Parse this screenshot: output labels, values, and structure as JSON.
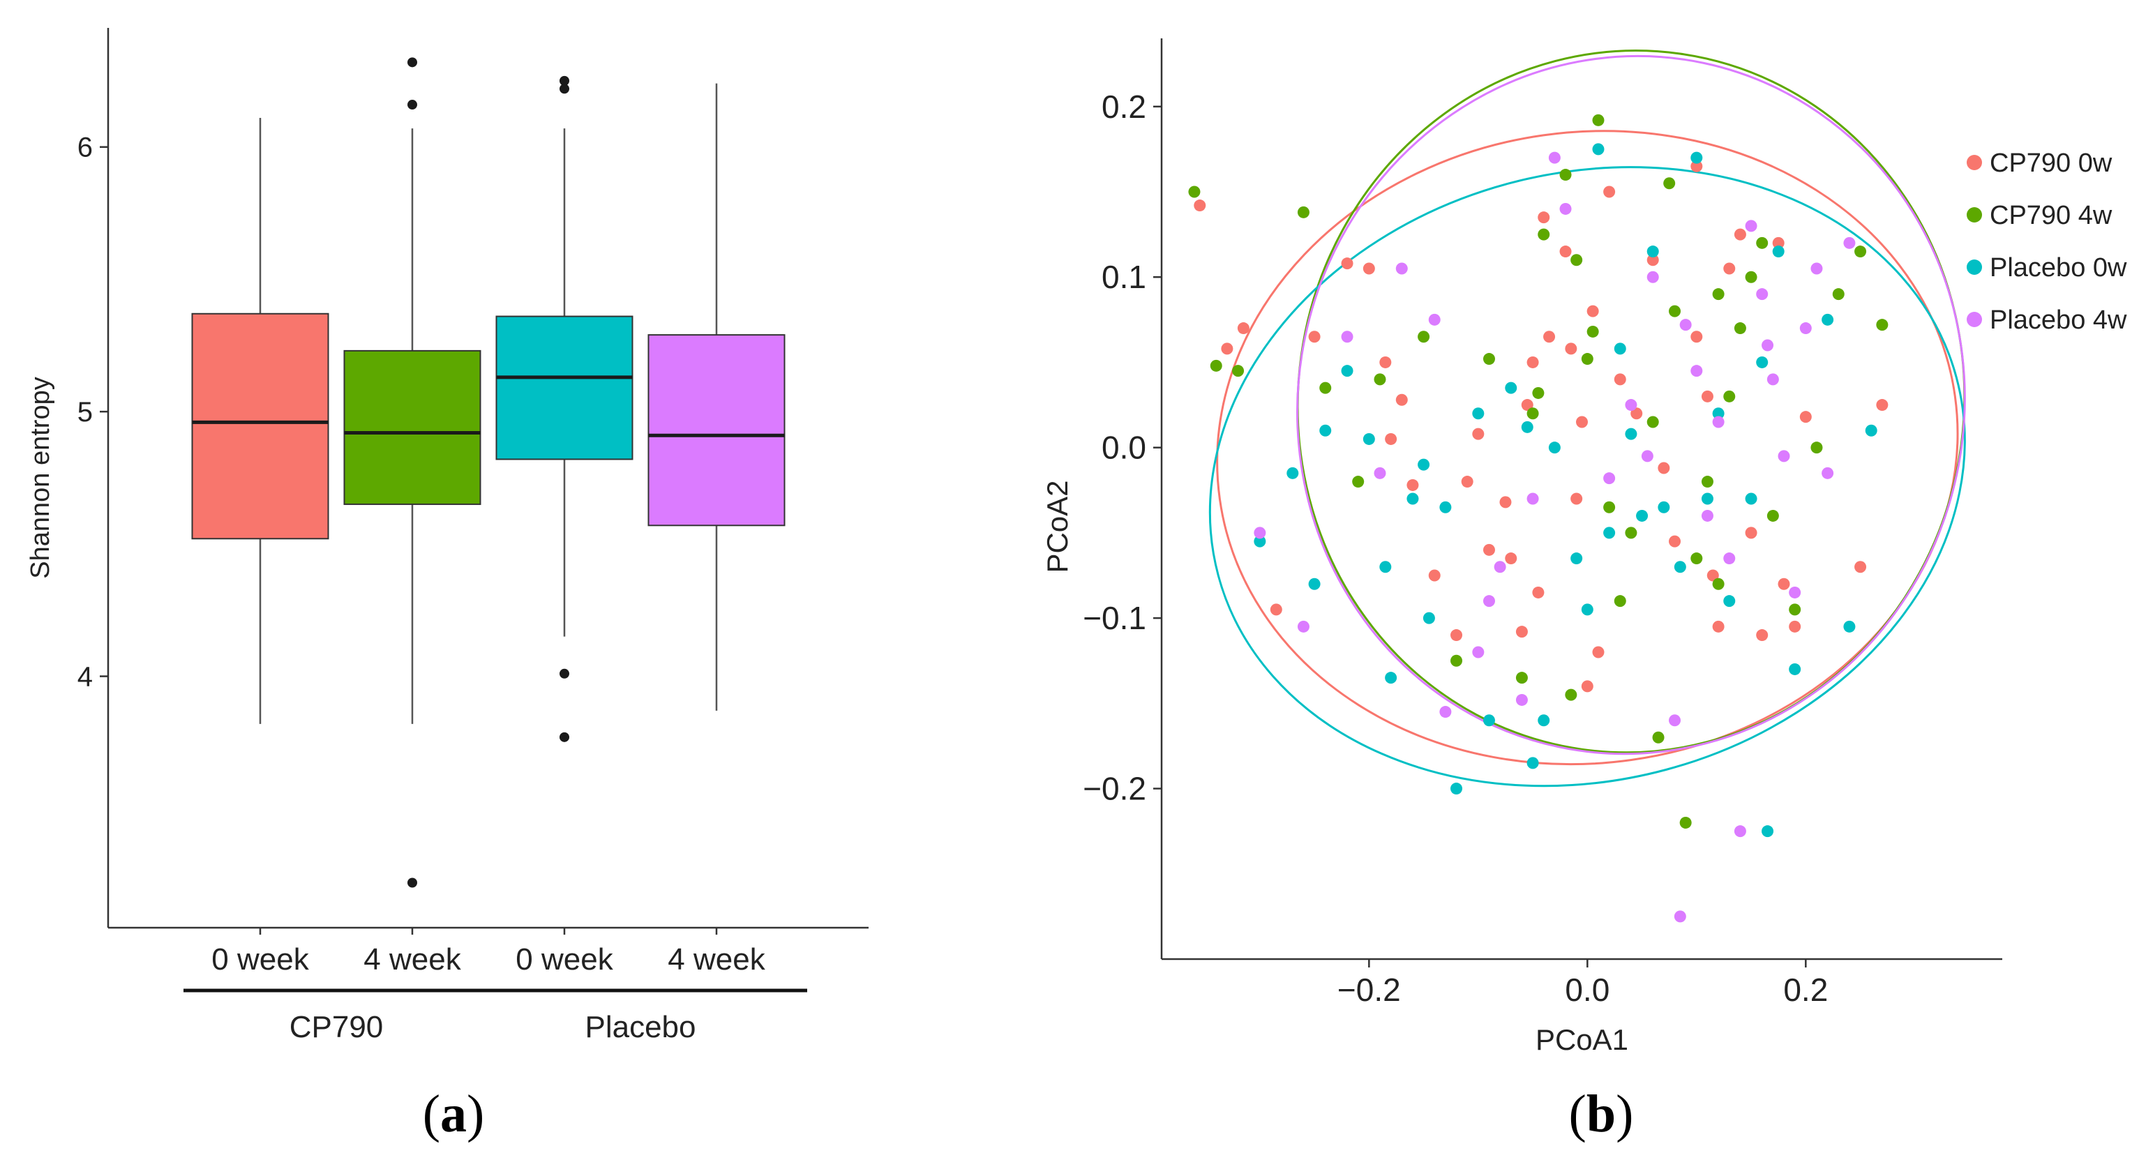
{
  "panels": {
    "a": {
      "label_open": "(",
      "label_letter": "a",
      "label_close": ")"
    },
    "b": {
      "label_open": "(",
      "label_letter": "b",
      "label_close": ")"
    }
  },
  "chart_data": [
    {
      "type": "box",
      "panel": "a",
      "title": "",
      "xlabel": "",
      "ylabel": "Shannon entropy",
      "ylim": [
        3.05,
        6.45
      ],
      "yticks": [
        4,
        5,
        6
      ],
      "grid": false,
      "groups": [
        {
          "label": "CP790",
          "categories": [
            0,
            1
          ]
        },
        {
          "label": "Placebo",
          "categories": [
            2,
            3
          ]
        }
      ],
      "boxes": [
        {
          "category": "0 week",
          "group": "CP790",
          "color": "#F8766D",
          "whisker_low": 3.82,
          "q1": 4.52,
          "median": 4.96,
          "q3": 5.37,
          "whisker_high": 6.11,
          "outliers": []
        },
        {
          "category": "4 week",
          "group": "CP790",
          "color": "#5DA800",
          "whisker_low": 3.82,
          "q1": 4.65,
          "median": 4.92,
          "q3": 5.23,
          "whisker_high": 6.07,
          "outliers": [
            6.32,
            6.16,
            3.22
          ]
        },
        {
          "category": "0 week",
          "group": "Placebo",
          "color": "#00BFC4",
          "whisker_low": 4.15,
          "q1": 4.82,
          "median": 5.13,
          "q3": 5.36,
          "whisker_high": 6.07,
          "outliers": [
            6.25,
            6.22,
            4.01,
            3.77
          ]
        },
        {
          "category": "4 week",
          "group": "Placebo",
          "color": "#DB7BFF",
          "whisker_low": 3.87,
          "q1": 4.57,
          "median": 4.91,
          "q3": 5.29,
          "whisker_high": 6.24,
          "outliers": []
        }
      ]
    },
    {
      "type": "scatter",
      "panel": "b",
      "title": "",
      "xlabel": "PCoA1",
      "ylabel": "PCoA2",
      "xlim": [
        -0.39,
        0.38
      ],
      "ylim": [
        -0.3,
        0.24
      ],
      "xticks": [
        -0.2,
        0.0,
        0.2
      ],
      "yticks": [
        -0.2,
        -0.1,
        0.0,
        0.1,
        0.2
      ],
      "xtick_labels": [
        "−0.2",
        "0.0",
        "0.2"
      ],
      "ytick_labels": [
        "−0.2",
        "−0.1",
        "0.0",
        "0.1",
        "0.2"
      ],
      "grid": false,
      "legend_position": "right",
      "series": [
        {
          "name": "CP790 0w",
          "color": "#F8766D",
          "ellipse": {
            "cx": 0.0,
            "cy": 0.0,
            "rx": 0.34,
            "ry": 0.185,
            "angle_deg": 8
          },
          "points": [
            [
              -0.355,
              0.142
            ],
            [
              -0.33,
              0.058
            ],
            [
              -0.315,
              0.07
            ],
            [
              -0.285,
              -0.095
            ],
            [
              -0.25,
              0.065
            ],
            [
              -0.22,
              0.108
            ],
            [
              -0.2,
              0.105
            ],
            [
              -0.185,
              0.05
            ],
            [
              -0.18,
              0.005
            ],
            [
              -0.17,
              0.028
            ],
            [
              -0.16,
              -0.022
            ],
            [
              -0.14,
              -0.075
            ],
            [
              -0.12,
              -0.11
            ],
            [
              -0.1,
              0.008
            ],
            [
              -0.09,
              -0.06
            ],
            [
              -0.075,
              -0.032
            ],
            [
              -0.07,
              -0.065
            ],
            [
              -0.06,
              -0.108
            ],
            [
              -0.055,
              0.025
            ],
            [
              -0.05,
              0.05
            ],
            [
              -0.04,
              0.135
            ],
            [
              -0.035,
              0.065
            ],
            [
              -0.02,
              0.115
            ],
            [
              -0.015,
              0.058
            ],
            [
              -0.01,
              -0.03
            ],
            [
              -0.005,
              0.015
            ],
            [
              0.0,
              -0.14
            ],
            [
              0.01,
              -0.12
            ],
            [
              0.02,
              0.15
            ],
            [
              0.03,
              0.04
            ],
            [
              0.045,
              0.02
            ],
            [
              0.06,
              0.11
            ],
            [
              0.07,
              -0.012
            ],
            [
              0.08,
              -0.055
            ],
            [
              0.1,
              0.065
            ],
            [
              0.11,
              0.03
            ],
            [
              0.115,
              -0.075
            ],
            [
              0.12,
              -0.105
            ],
            [
              0.13,
              0.105
            ],
            [
              0.14,
              0.125
            ],
            [
              0.15,
              -0.05
            ],
            [
              0.16,
              -0.11
            ],
            [
              0.175,
              0.12
            ],
            [
              0.18,
              -0.08
            ],
            [
              0.19,
              -0.105
            ],
            [
              0.2,
              0.018
            ],
            [
              0.25,
              -0.07
            ],
            [
              0.27,
              0.025
            ],
            [
              0.1,
              0.165
            ],
            [
              -0.11,
              -0.02
            ],
            [
              -0.045,
              -0.085
            ],
            [
              0.005,
              0.08
            ]
          ]
        },
        {
          "name": "CP790 4w",
          "color": "#5DA800",
          "ellipse": {
            "cx": 0.04,
            "cy": 0.027,
            "rx": 0.305,
            "ry": 0.206,
            "angle_deg": -8
          },
          "points": [
            [
              -0.36,
              0.15
            ],
            [
              -0.34,
              0.048
            ],
            [
              -0.32,
              0.045
            ],
            [
              -0.26,
              0.138
            ],
            [
              -0.24,
              0.035
            ],
            [
              -0.21,
              -0.02
            ],
            [
              -0.19,
              0.04
            ],
            [
              -0.15,
              0.065
            ],
            [
              -0.12,
              -0.125
            ],
            [
              -0.09,
              0.052
            ],
            [
              -0.06,
              -0.135
            ],
            [
              -0.05,
              0.02
            ],
            [
              -0.04,
              0.125
            ],
            [
              -0.02,
              0.16
            ],
            [
              -0.01,
              0.11
            ],
            [
              0.0,
              0.052
            ],
            [
              0.005,
              0.068
            ],
            [
              0.01,
              0.192
            ],
            [
              0.02,
              -0.035
            ],
            [
              0.04,
              -0.05
            ],
            [
              0.06,
              0.015
            ],
            [
              0.075,
              0.155
            ],
            [
              0.08,
              0.08
            ],
            [
              0.09,
              -0.22
            ],
            [
              0.1,
              -0.065
            ],
            [
              0.11,
              -0.02
            ],
            [
              0.12,
              -0.08
            ],
            [
              0.13,
              0.03
            ],
            [
              0.14,
              0.07
            ],
            [
              0.15,
              0.1
            ],
            [
              0.16,
              0.12
            ],
            [
              0.17,
              -0.04
            ],
            [
              0.19,
              -0.095
            ],
            [
              0.21,
              0.0
            ],
            [
              0.23,
              0.09
            ],
            [
              0.25,
              0.115
            ],
            [
              0.27,
              0.072
            ],
            [
              -0.015,
              -0.145
            ],
            [
              -0.045,
              0.032
            ],
            [
              0.03,
              -0.09
            ],
            [
              0.065,
              -0.17
            ],
            [
              0.12,
              0.09
            ]
          ]
        },
        {
          "name": "Placebo 0w",
          "color": "#00BFC4",
          "ellipse": {
            "cx": 0.0,
            "cy": -0.017,
            "rx": 0.35,
            "ry": 0.178,
            "angle_deg": 15
          },
          "points": [
            [
              -0.3,
              -0.055
            ],
            [
              -0.27,
              -0.015
            ],
            [
              -0.25,
              -0.08
            ],
            [
              -0.24,
              0.01
            ],
            [
              -0.22,
              0.045
            ],
            [
              -0.2,
              0.005
            ],
            [
              -0.185,
              -0.07
            ],
            [
              -0.18,
              -0.135
            ],
            [
              -0.16,
              -0.03
            ],
            [
              -0.15,
              -0.01
            ],
            [
              -0.13,
              -0.035
            ],
            [
              -0.12,
              -0.2
            ],
            [
              -0.1,
              0.02
            ],
            [
              -0.09,
              -0.16
            ],
            [
              -0.07,
              0.035
            ],
            [
              -0.05,
              -0.185
            ],
            [
              -0.04,
              -0.16
            ],
            [
              -0.03,
              0.0
            ],
            [
              -0.01,
              -0.065
            ],
            [
              0.0,
              -0.095
            ],
            [
              0.01,
              0.175
            ],
            [
              0.02,
              -0.05
            ],
            [
              0.03,
              0.058
            ],
            [
              0.05,
              -0.04
            ],
            [
              0.06,
              0.115
            ],
            [
              0.07,
              -0.035
            ],
            [
              0.085,
              -0.07
            ],
            [
              0.1,
              0.17
            ],
            [
              0.11,
              -0.03
            ],
            [
              0.12,
              0.02
            ],
            [
              0.13,
              -0.09
            ],
            [
              0.15,
              -0.03
            ],
            [
              0.16,
              0.05
            ],
            [
              0.165,
              -0.225
            ],
            [
              0.175,
              0.115
            ],
            [
              0.19,
              -0.13
            ],
            [
              0.22,
              0.075
            ],
            [
              0.24,
              -0.105
            ],
            [
              0.26,
              0.01
            ],
            [
              -0.145,
              -0.1
            ],
            [
              -0.055,
              0.012
            ],
            [
              0.04,
              0.008
            ]
          ]
        },
        {
          "name": "Placebo 4w",
          "color": "#DB7BFF",
          "ellipse": {
            "cx": 0.04,
            "cy": 0.025,
            "rx": 0.305,
            "ry": 0.205,
            "angle_deg": -12
          },
          "points": [
            [
              -0.3,
              -0.05
            ],
            [
              -0.26,
              -0.105
            ],
            [
              -0.22,
              0.065
            ],
            [
              -0.19,
              -0.015
            ],
            [
              -0.17,
              0.105
            ],
            [
              -0.14,
              0.075
            ],
            [
              -0.13,
              -0.155
            ],
            [
              -0.1,
              -0.12
            ],
            [
              -0.08,
              -0.07
            ],
            [
              -0.06,
              -0.148
            ],
            [
              -0.05,
              -0.03
            ],
            [
              -0.03,
              0.17
            ],
            [
              -0.02,
              0.14
            ],
            [
              0.02,
              -0.018
            ],
            [
              0.04,
              0.025
            ],
            [
              0.06,
              0.1
            ],
            [
              0.08,
              -0.16
            ],
            [
              0.09,
              0.072
            ],
            [
              0.1,
              0.045
            ],
            [
              0.11,
              -0.04
            ],
            [
              0.12,
              0.015
            ],
            [
              0.13,
              -0.065
            ],
            [
              0.14,
              -0.225
            ],
            [
              0.15,
              0.13
            ],
            [
              0.16,
              0.09
            ],
            [
              0.17,
              0.04
            ],
            [
              0.18,
              -0.005
            ],
            [
              0.19,
              -0.085
            ],
            [
              0.2,
              0.07
            ],
            [
              0.21,
              0.105
            ],
            [
              0.22,
              -0.015
            ],
            [
              0.24,
              0.12
            ],
            [
              0.085,
              -0.275
            ],
            [
              -0.09,
              -0.09
            ],
            [
              0.055,
              -0.005
            ],
            [
              0.165,
              0.06
            ]
          ]
        }
      ]
    }
  ]
}
